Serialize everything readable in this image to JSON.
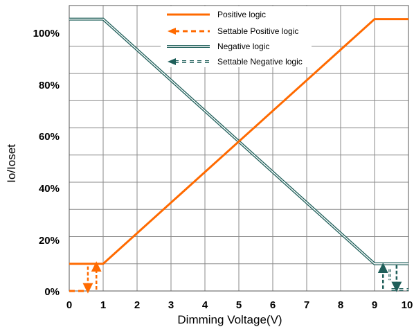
{
  "chart_data": {
    "type": "line",
    "xlabel": "Dimming Voltage(V)",
    "ylabel": "Io/Ioset",
    "xlim": [
      0,
      10
    ],
    "ylim": [
      0,
      105
    ],
    "x_ticks": [
      "0",
      "1",
      "2",
      "3",
      "4",
      "5",
      "6",
      "7",
      "8",
      "9",
      "10"
    ],
    "y_ticks": [
      "0%",
      "20%",
      "40%",
      "60%",
      "80%",
      "100%"
    ],
    "grid": true,
    "legend_position": "top-center",
    "series": [
      {
        "name": "Positive logic",
        "color": "#ff6a00",
        "style": "solid",
        "x": [
          0,
          1,
          9,
          10
        ],
        "y": [
          10,
          10,
          100,
          100
        ]
      },
      {
        "name": "Settable Positive logic",
        "color": "#ff6a00",
        "style": "dashed-arrow",
        "x": [
          0,
          0.5
        ],
        "y": [
          0,
          0
        ]
      },
      {
        "name": "Negative logic",
        "color": "#1f5f5a",
        "style": "double",
        "x": [
          0,
          1,
          9,
          10
        ],
        "y": [
          100,
          100,
          10,
          10
        ]
      },
      {
        "name": "Settable Negative logic",
        "color": "#1f5f5a",
        "style": "double-dashed-arrow",
        "x": [
          9.5,
          10
        ],
        "y": [
          0,
          0
        ]
      }
    ]
  }
}
